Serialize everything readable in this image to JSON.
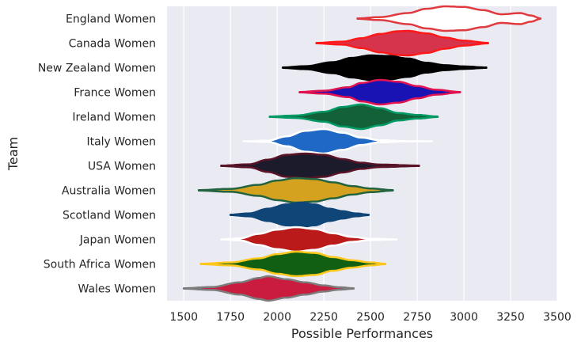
{
  "chart_data": {
    "type": "violin",
    "xlabel": "Possible Performances",
    "ylabel": "Team",
    "xlim": [
      1410,
      3500
    ],
    "xticks": [
      1500,
      1750,
      2000,
      2250,
      2500,
      2750,
      3000,
      3250,
      3500
    ],
    "grid": true,
    "background": "#eaeaf2",
    "categories": [
      "England Women",
      "Canada Women",
      "New Zealand Women",
      "France Women",
      "Ireland Women",
      "Italy Women",
      "USA Women",
      "Australia Women",
      "Scotland Women",
      "Japan Women",
      "South Africa Women",
      "Wales Women"
    ],
    "series": [
      {
        "category": "England Women",
        "min": 2430,
        "max": 3410,
        "center": 2960,
        "fill": "#ffffff",
        "outline": "#e0393e",
        "profile": [
          [
            2430,
            0.02
          ],
          [
            2550,
            0.12
          ],
          [
            2700,
            0.45
          ],
          [
            2800,
            0.8
          ],
          [
            2900,
            1.0
          ],
          [
            3000,
            0.95
          ],
          [
            3100,
            0.7
          ],
          [
            3200,
            0.35
          ],
          [
            3300,
            0.45
          ],
          [
            3360,
            0.25
          ],
          [
            3410,
            0.02
          ]
        ]
      },
      {
        "category": "Canada Women",
        "min": 2210,
        "max": 3130,
        "center": 2680,
        "fill": "#d6334c",
        "outline": "#ff1a1a",
        "profile": [
          [
            2210,
            0.02
          ],
          [
            2350,
            0.12
          ],
          [
            2450,
            0.4
          ],
          [
            2550,
            0.75
          ],
          [
            2650,
            0.97
          ],
          [
            2700,
            1.0
          ],
          [
            2800,
            0.8
          ],
          [
            2900,
            0.45
          ],
          [
            3000,
            0.2
          ],
          [
            3130,
            0.02
          ]
        ]
      },
      {
        "category": "New Zealand Women",
        "min": 2030,
        "max": 3120,
        "center": 2540,
        "fill": "#000000",
        "outline": "#000000",
        "profile": [
          [
            2030,
            0.02
          ],
          [
            2150,
            0.12
          ],
          [
            2300,
            0.45
          ],
          [
            2400,
            0.8
          ],
          [
            2500,
            1.0
          ],
          [
            2600,
            0.95
          ],
          [
            2700,
            0.75
          ],
          [
            2800,
            0.4
          ],
          [
            2900,
            0.2
          ],
          [
            3000,
            0.1
          ],
          [
            3120,
            0.02
          ]
        ]
      },
      {
        "category": "France Women",
        "min": 2120,
        "max": 2980,
        "center": 2560,
        "fill": "#1a13b4",
        "outline": "#e0124f",
        "profile": [
          [
            2120,
            0.02
          ],
          [
            2250,
            0.12
          ],
          [
            2380,
            0.4
          ],
          [
            2450,
            0.75
          ],
          [
            2550,
            1.0
          ],
          [
            2650,
            0.85
          ],
          [
            2750,
            0.5
          ],
          [
            2850,
            0.2
          ],
          [
            2980,
            0.02
          ]
        ]
      },
      {
        "category": "Ireland Women",
        "min": 1960,
        "max": 2860,
        "center": 2440,
        "fill": "#136138",
        "outline": "#019a65",
        "profile": [
          [
            1960,
            0.02
          ],
          [
            2100,
            0.1
          ],
          [
            2250,
            0.4
          ],
          [
            2350,
            0.8
          ],
          [
            2450,
            1.0
          ],
          [
            2550,
            0.7
          ],
          [
            2650,
            0.3
          ],
          [
            2750,
            0.15
          ],
          [
            2860,
            0.02
          ]
        ]
      },
      {
        "category": "Italy Women",
        "min": 1820,
        "max": 2830,
        "center": 2260,
        "fill": "#1f68c6",
        "outline": "#ffffff",
        "profile": [
          [
            1820,
            0.0
          ],
          [
            1950,
            0.05
          ],
          [
            2050,
            0.4
          ],
          [
            2150,
            0.85
          ],
          [
            2250,
            1.0
          ],
          [
            2350,
            0.7
          ],
          [
            2450,
            0.3
          ],
          [
            2550,
            0.08
          ],
          [
            2700,
            0.01
          ],
          [
            2830,
            0.0
          ]
        ]
      },
      {
        "category": "USA Women",
        "min": 1700,
        "max": 2760,
        "center": 2170,
        "fill": "#1b1b2c",
        "outline": "#5a1428",
        "profile": [
          [
            1700,
            0.02
          ],
          [
            1850,
            0.12
          ],
          [
            1950,
            0.5
          ],
          [
            2050,
            0.9
          ],
          [
            2150,
            1.0
          ],
          [
            2250,
            0.9
          ],
          [
            2350,
            0.55
          ],
          [
            2450,
            0.25
          ],
          [
            2550,
            0.1
          ],
          [
            2760,
            0.02
          ]
        ]
      },
      {
        "category": "Australia Women",
        "min": 1580,
        "max": 2620,
        "center": 2150,
        "fill": "#d5a21f",
        "outline": "#23633f",
        "profile": [
          [
            1580,
            0.02
          ],
          [
            1750,
            0.12
          ],
          [
            1900,
            0.45
          ],
          [
            2000,
            0.8
          ],
          [
            2100,
            1.0
          ],
          [
            2200,
            0.92
          ],
          [
            2300,
            0.65
          ],
          [
            2400,
            0.35
          ],
          [
            2500,
            0.15
          ],
          [
            2620,
            0.02
          ]
        ]
      },
      {
        "category": "Scotland Women",
        "min": 1750,
        "max": 2490,
        "center": 2140,
        "fill": "#0f4677",
        "outline": "#0f4677",
        "profile": [
          [
            1750,
            0.02
          ],
          [
            1850,
            0.12
          ],
          [
            1950,
            0.5
          ],
          [
            2050,
            0.85
          ],
          [
            2130,
            1.0
          ],
          [
            2200,
            0.85
          ],
          [
            2280,
            0.5
          ],
          [
            2350,
            0.3
          ],
          [
            2420,
            0.12
          ],
          [
            2490,
            0.02
          ]
        ]
      },
      {
        "category": "Japan Women",
        "min": 1700,
        "max": 2640,
        "center": 2110,
        "fill": "#bb1a1a",
        "outline": "#ffffff",
        "profile": [
          [
            1700,
            0.0
          ],
          [
            1800,
            0.08
          ],
          [
            1900,
            0.45
          ],
          [
            2000,
            0.8
          ],
          [
            2100,
            1.0
          ],
          [
            2200,
            0.85
          ],
          [
            2300,
            0.5
          ],
          [
            2400,
            0.2
          ],
          [
            2500,
            0.05
          ],
          [
            2640,
            0.0
          ]
        ]
      },
      {
        "category": "South Africa Women",
        "min": 1590,
        "max": 2580,
        "center": 2100,
        "fill": "#115f12",
        "outline": "#ffc61b",
        "profile": [
          [
            1590,
            0.02
          ],
          [
            1750,
            0.12
          ],
          [
            1900,
            0.45
          ],
          [
            2000,
            0.8
          ],
          [
            2100,
            1.0
          ],
          [
            2200,
            0.9
          ],
          [
            2300,
            0.55
          ],
          [
            2400,
            0.3
          ],
          [
            2500,
            0.12
          ],
          [
            2580,
            0.02
          ]
        ]
      },
      {
        "category": "Wales Women",
        "min": 1500,
        "max": 2410,
        "center": 1940,
        "fill": "#c91c3f",
        "outline": "#7c7c7c",
        "profile": [
          [
            1500,
            0.02
          ],
          [
            1650,
            0.12
          ],
          [
            1800,
            0.5
          ],
          [
            1900,
            0.85
          ],
          [
            1950,
            1.0
          ],
          [
            2050,
            0.75
          ],
          [
            2150,
            0.5
          ],
          [
            2250,
            0.25
          ],
          [
            2330,
            0.1
          ],
          [
            2410,
            0.02
          ]
        ]
      }
    ]
  }
}
